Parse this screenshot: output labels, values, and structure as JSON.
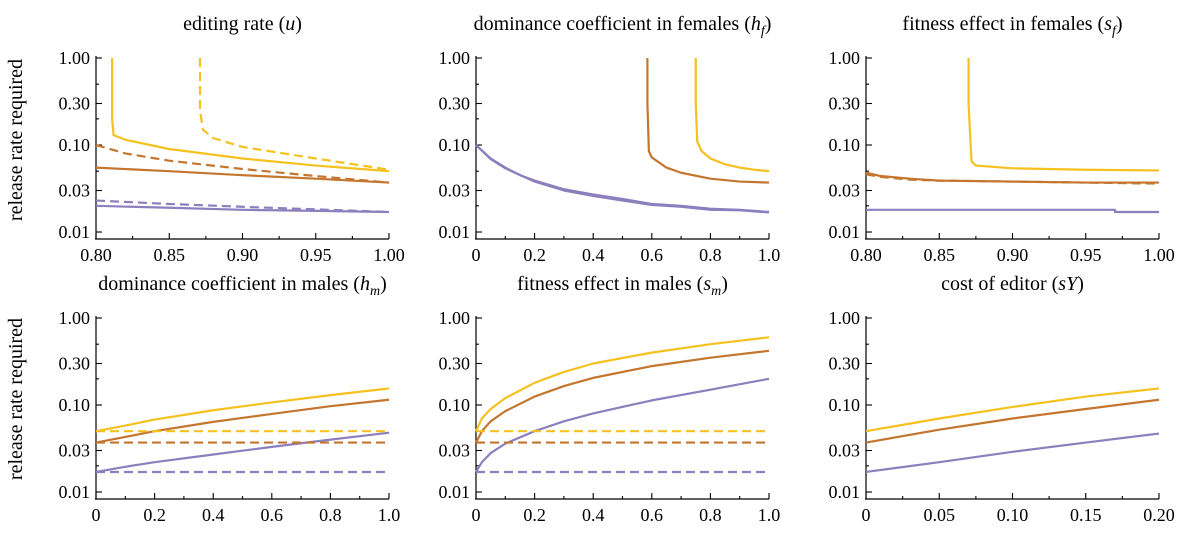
{
  "colors": {
    "yellow": "#F5C11E",
    "orange": "#C4762F",
    "purple": "#8C7FBE"
  },
  "ylabels": [
    "release rate required",
    "release rate required"
  ],
  "chart_data": [
    {
      "type": "line",
      "title": "editing rate (u)",
      "title_parts": {
        "main": "editing rate (",
        "sym": "u",
        "sub": "",
        "close": ")"
      },
      "xlim": [
        0.8,
        1.0
      ],
      "xticks": [
        0.8,
        0.85,
        0.9,
        0.95,
        1.0
      ],
      "xtick_labels": [
        "0.80",
        "0.85",
        "0.90",
        "0.95",
        "1.00"
      ],
      "yscale": "log",
      "ylim": [
        0.009,
        1.0
      ],
      "yticks": [
        0.01,
        0.03,
        0.1,
        0.3,
        1.0
      ],
      "ytick_labels": [
        "0.01",
        "0.03",
        "0.10",
        "0.30",
        "1.00"
      ],
      "series": [
        {
          "color": "yellow",
          "style": "solid",
          "x": [
            0.811,
            0.811,
            0.812,
            0.82,
            0.85,
            0.9,
            0.95,
            1.0
          ],
          "y": [
            1.0,
            0.2,
            0.13,
            0.115,
            0.09,
            0.07,
            0.058,
            0.05
          ]
        },
        {
          "color": "yellow",
          "style": "dashed",
          "x": [
            0.871,
            0.871,
            0.873,
            0.88,
            0.9,
            0.95,
            1.0
          ],
          "y": [
            1.0,
            0.25,
            0.15,
            0.12,
            0.095,
            0.07,
            0.052
          ]
        },
        {
          "color": "orange",
          "style": "dashed",
          "x": [
            0.8,
            0.82,
            0.85,
            0.9,
            0.95,
            1.0
          ],
          "y": [
            0.1,
            0.08,
            0.066,
            0.053,
            0.044,
            0.037
          ]
        },
        {
          "color": "orange",
          "style": "solid",
          "x": [
            0.8,
            0.85,
            0.9,
            0.95,
            1.0
          ],
          "y": [
            0.055,
            0.05,
            0.045,
            0.041,
            0.037
          ]
        },
        {
          "color": "purple",
          "style": "dashed",
          "x": [
            0.8,
            0.85,
            0.9,
            0.95,
            1.0
          ],
          "y": [
            0.023,
            0.021,
            0.0195,
            0.0182,
            0.017
          ]
        },
        {
          "color": "purple",
          "style": "solid",
          "x": [
            0.8,
            0.85,
            0.9,
            0.95,
            1.0
          ],
          "y": [
            0.02,
            0.019,
            0.018,
            0.0175,
            0.017
          ]
        }
      ]
    },
    {
      "type": "line",
      "title": "dominance coefficient in females (hf)",
      "title_parts": {
        "main": "dominance coefficient in females (",
        "sym": "h",
        "sub": "f",
        "close": ")"
      },
      "xlim": [
        0,
        1.0
      ],
      "xticks": [
        0,
        0.2,
        0.4,
        0.6,
        0.8,
        1.0
      ],
      "xtick_labels": [
        "0",
        "0.2",
        "0.4",
        "0.6",
        "0.8",
        "1.0"
      ],
      "yscale": "log",
      "ylim": [
        0.009,
        1.0
      ],
      "yticks": [
        0.01,
        0.03,
        0.1,
        0.3,
        1.0
      ],
      "ytick_labels": [
        "0.01",
        "0.03",
        "0.10",
        "0.30",
        "1.00"
      ],
      "series": [
        {
          "color": "orange",
          "style": "solid",
          "x": [
            0.585,
            0.585,
            0.59,
            0.6,
            0.65,
            0.7,
            0.8,
            0.9,
            1.0
          ],
          "y": [
            1.0,
            0.3,
            0.085,
            0.072,
            0.055,
            0.048,
            0.041,
            0.038,
            0.037
          ]
        },
        {
          "color": "yellow",
          "style": "solid",
          "x": [
            0.75,
            0.75,
            0.755,
            0.77,
            0.8,
            0.85,
            0.9,
            0.95,
            1.0
          ],
          "y": [
            1.0,
            0.3,
            0.11,
            0.085,
            0.07,
            0.06,
            0.055,
            0.052,
            0.05
          ]
        },
        {
          "color": "purple",
          "style": "solid",
          "x": [
            0,
            0.05,
            0.1,
            0.15,
            0.2,
            0.3,
            0.4,
            0.5,
            0.6,
            0.7,
            0.8,
            0.9,
            1.0
          ],
          "y": [
            0.1,
            0.07,
            0.055,
            0.045,
            0.039,
            0.031,
            0.027,
            0.024,
            0.021,
            0.02,
            0.0185,
            0.018,
            0.017
          ]
        },
        {
          "color": "purple",
          "style": "solid",
          "x": [
            0,
            0.05,
            0.1,
            0.2,
            0.3,
            0.4,
            0.5,
            0.6,
            0.7,
            0.8,
            0.9,
            1.0
          ],
          "y": [
            0.1,
            0.069,
            0.054,
            0.038,
            0.03,
            0.026,
            0.023,
            0.0205,
            0.0195,
            0.018,
            0.0178,
            0.0168
          ]
        }
      ]
    },
    {
      "type": "line",
      "title": "fitness effect in females (sf)",
      "title_parts": {
        "main": "fitness effect in females (",
        "sym": "s",
        "sub": "f",
        "close": ")"
      },
      "xlim": [
        0.8,
        1.0
      ],
      "xticks": [
        0.8,
        0.85,
        0.9,
        0.95,
        1.0
      ],
      "xtick_labels": [
        "0.80",
        "0.85",
        "0.90",
        "0.95",
        "1.00"
      ],
      "yscale": "log",
      "ylim": [
        0.009,
        1.0
      ],
      "yticks": [
        0.01,
        0.03,
        0.1,
        0.3,
        1.0
      ],
      "ytick_labels": [
        "0.01",
        "0.03",
        "0.10",
        "0.30",
        "1.00"
      ],
      "series": [
        {
          "color": "yellow",
          "style": "solid",
          "x": [
            0.87,
            0.87,
            0.872,
            0.875,
            0.9,
            0.95,
            1.0
          ],
          "y": [
            1.0,
            0.3,
            0.065,
            0.058,
            0.054,
            0.052,
            0.051
          ]
        },
        {
          "color": "orange",
          "style": "solid",
          "x": [
            0.8,
            0.81,
            0.83,
            0.85,
            0.9,
            0.95,
            1.0
          ],
          "y": [
            0.048,
            0.044,
            0.041,
            0.039,
            0.038,
            0.037,
            0.037
          ]
        },
        {
          "color": "orange",
          "style": "dashed",
          "x": [
            0.8,
            0.81,
            0.83,
            0.85,
            0.9,
            0.95,
            1.0
          ],
          "y": [
            0.046,
            0.043,
            0.04,
            0.039,
            0.038,
            0.037,
            0.036
          ]
        },
        {
          "color": "purple",
          "style": "solid",
          "x": [
            0.8,
            0.9,
            0.97,
            0.97,
            1.0
          ],
          "y": [
            0.018,
            0.018,
            0.018,
            0.017,
            0.017
          ]
        }
      ]
    },
    {
      "type": "line",
      "title": "dominance coefficient in males (hm)",
      "title_parts": {
        "main": "dominance coefficient in males (",
        "sym": "h",
        "sub": "m",
        "close": ")"
      },
      "xlim": [
        0,
        1.0
      ],
      "xticks": [
        0,
        0.2,
        0.4,
        0.6,
        0.8,
        1.0
      ],
      "xtick_labels": [
        "0",
        "0.2",
        "0.4",
        "0.6",
        "0.8",
        "1.0"
      ],
      "yscale": "log",
      "ylim": [
        0.009,
        1.0
      ],
      "yticks": [
        0.01,
        0.03,
        0.1,
        0.3,
        1.0
      ],
      "ytick_labels": [
        "0.01",
        "0.03",
        "0.10",
        "0.30",
        "1.00"
      ],
      "series": [
        {
          "color": "yellow",
          "style": "solid",
          "x": [
            0,
            0.1,
            0.2,
            0.4,
            0.6,
            0.8,
            1.0
          ],
          "y": [
            0.05,
            0.058,
            0.068,
            0.087,
            0.107,
            0.13,
            0.155
          ]
        },
        {
          "color": "orange",
          "style": "solid",
          "x": [
            0,
            0.1,
            0.2,
            0.4,
            0.6,
            0.8,
            1.0
          ],
          "y": [
            0.037,
            0.043,
            0.05,
            0.064,
            0.079,
            0.097,
            0.115
          ]
        },
        {
          "color": "purple",
          "style": "solid",
          "x": [
            0,
            0.1,
            0.2,
            0.4,
            0.6,
            0.8,
            1.0
          ],
          "y": [
            0.017,
            0.0195,
            0.022,
            0.027,
            0.033,
            0.04,
            0.048
          ]
        },
        {
          "color": "yellow",
          "style": "dashed",
          "x": [
            0,
            1.0
          ],
          "y": [
            0.05,
            0.05
          ]
        },
        {
          "color": "orange",
          "style": "dashed",
          "x": [
            0,
            1.0
          ],
          "y": [
            0.037,
            0.037
          ]
        },
        {
          "color": "purple",
          "style": "dashed",
          "x": [
            0,
            1.0
          ],
          "y": [
            0.017,
            0.017
          ]
        }
      ]
    },
    {
      "type": "line",
      "title": "fitness effect in males (sm)",
      "title_parts": {
        "main": "fitness effect in males (",
        "sym": "s",
        "sub": "m",
        "close": ")"
      },
      "xlim": [
        0,
        1.0
      ],
      "xticks": [
        0,
        0.2,
        0.4,
        0.6,
        0.8,
        1.0
      ],
      "xtick_labels": [
        "0",
        "0.2",
        "0.4",
        "0.6",
        "0.8",
        "1.0"
      ],
      "yscale": "log",
      "ylim": [
        0.009,
        1.0
      ],
      "yticks": [
        0.01,
        0.03,
        0.1,
        0.3,
        1.0
      ],
      "ytick_labels": [
        "0.01",
        "0.03",
        "0.10",
        "0.30",
        "1.00"
      ],
      "series": [
        {
          "color": "yellow",
          "style": "solid",
          "x": [
            0,
            0.02,
            0.05,
            0.1,
            0.2,
            0.3,
            0.4,
            0.6,
            0.8,
            1.0
          ],
          "y": [
            0.05,
            0.07,
            0.09,
            0.12,
            0.18,
            0.24,
            0.3,
            0.4,
            0.5,
            0.6
          ]
        },
        {
          "color": "orange",
          "style": "solid",
          "x": [
            0,
            0.02,
            0.05,
            0.1,
            0.2,
            0.3,
            0.4,
            0.6,
            0.8,
            1.0
          ],
          "y": [
            0.037,
            0.05,
            0.065,
            0.085,
            0.125,
            0.165,
            0.205,
            0.28,
            0.35,
            0.42
          ]
        },
        {
          "color": "purple",
          "style": "solid",
          "x": [
            0,
            0.02,
            0.05,
            0.1,
            0.2,
            0.3,
            0.4,
            0.6,
            0.8,
            1.0
          ],
          "y": [
            0.017,
            0.022,
            0.028,
            0.036,
            0.05,
            0.065,
            0.08,
            0.113,
            0.15,
            0.2
          ]
        },
        {
          "color": "yellow",
          "style": "dashed",
          "x": [
            0,
            1.0
          ],
          "y": [
            0.05,
            0.05
          ]
        },
        {
          "color": "orange",
          "style": "dashed",
          "x": [
            0,
            1.0
          ],
          "y": [
            0.037,
            0.037
          ]
        },
        {
          "color": "purple",
          "style": "dashed",
          "x": [
            0,
            1.0
          ],
          "y": [
            0.017,
            0.017
          ]
        }
      ]
    },
    {
      "type": "line",
      "title": "cost of editor (sY)",
      "title_parts": {
        "main": "cost of editor (",
        "sym": "sY",
        "sub": "",
        "close": ")"
      },
      "xlim": [
        0,
        0.2
      ],
      "xticks": [
        0,
        0.05,
        0.1,
        0.15,
        0.2
      ],
      "xtick_labels": [
        "0",
        "0.05",
        "0.10",
        "0.15",
        "0.20"
      ],
      "yscale": "log",
      "ylim": [
        0.009,
        1.0
      ],
      "yticks": [
        0.01,
        0.03,
        0.1,
        0.3,
        1.0
      ],
      "ytick_labels": [
        "0.01",
        "0.03",
        "0.10",
        "0.30",
        "1.00"
      ],
      "series": [
        {
          "color": "yellow",
          "style": "solid",
          "x": [
            0,
            0.05,
            0.1,
            0.15,
            0.2
          ],
          "y": [
            0.05,
            0.07,
            0.095,
            0.125,
            0.155
          ]
        },
        {
          "color": "orange",
          "style": "solid",
          "x": [
            0,
            0.05,
            0.1,
            0.15,
            0.2
          ],
          "y": [
            0.037,
            0.052,
            0.07,
            0.09,
            0.115
          ]
        },
        {
          "color": "purple",
          "style": "solid",
          "x": [
            0,
            0.05,
            0.1,
            0.15,
            0.2
          ],
          "y": [
            0.017,
            0.022,
            0.029,
            0.037,
            0.047
          ]
        }
      ]
    }
  ]
}
